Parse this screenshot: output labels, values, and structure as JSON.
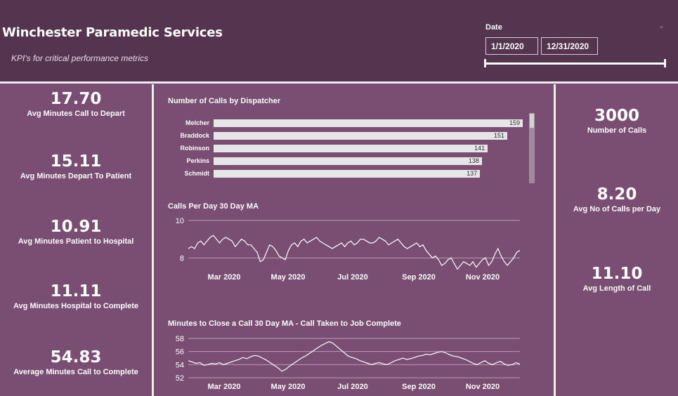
{
  "header": {
    "title": "Winchester Paramedic Services",
    "subtitle": "KPI's for critical performance metrics",
    "date_label": "Date",
    "date_start": "1/1/2020",
    "date_end": "12/31/2020",
    "slider_start": 0,
    "slider_end": 1
  },
  "left_kpis": [
    {
      "value": "17.70",
      "label": "Avg Minutes Call to Depart"
    },
    {
      "value": "15.11",
      "label": "Avg Minutes Depart To Patient"
    },
    {
      "value": "10.91",
      "label": "Avg Minutes Patient to Hospital"
    },
    {
      "value": "11.11",
      "label": "Avg Minutes Hospital to Complete"
    },
    {
      "value": "54.83",
      "label": "Average Minutes Call to Complete"
    }
  ],
  "right_kpis": [
    {
      "value": "3000",
      "label": "Number of Calls"
    },
    {
      "value": "8.20",
      "label": "Avg No of Calls per Day"
    },
    {
      "value": "11.10",
      "label": "Avg Length of Call"
    }
  ],
  "colors": {
    "background": "#7a4d72",
    "header": "#55344f",
    "bar": "#e6e6e8",
    "line": "#ffffff",
    "grid": "#b99ab2"
  },
  "chart_data": [
    {
      "type": "bar",
      "title": "Number of Calls by Dispatcher",
      "categories": [
        "Melcher",
        "Braddock",
        "Robinson",
        "Perkins",
        "Schmidt"
      ],
      "values": [
        159,
        151,
        141,
        138,
        137
      ],
      "xlim": [
        0,
        159
      ],
      "scrollable": true
    },
    {
      "type": "line",
      "title": "Calls Per Day 30 Day MA",
      "x_tick_labels": [
        "Mar 2020",
        "May 2020",
        "Jul 2020",
        "Sep 2020",
        "Nov 2020"
      ],
      "y_ticks": [
        8,
        10
      ],
      "ylim": [
        7.3,
        10
      ],
      "x_range": [
        "2020-01-30",
        "2020-12-31"
      ],
      "values": [
        8.5,
        8.6,
        8.5,
        8.8,
        8.9,
        8.7,
        8.9,
        9.1,
        9.2,
        9.0,
        8.8,
        9.0,
        9.1,
        9.0,
        8.9,
        8.6,
        8.8,
        9.0,
        8.9,
        8.7,
        8.7,
        8.5,
        8.3,
        7.8,
        7.9,
        8.3,
        8.7,
        8.6,
        8.4,
        8.1,
        8.0,
        7.9,
        8.4,
        8.7,
        8.8,
        8.6,
        8.9,
        9.0,
        8.8,
        8.9,
        9.0,
        9.1,
        8.9,
        8.8,
        8.7,
        8.6,
        8.5,
        8.6,
        8.7,
        8.8,
        8.6,
        8.8,
        8.9,
        8.7,
        8.8,
        9.0,
        9.0,
        8.9,
        8.8,
        8.8,
        8.9,
        9.1,
        9.0,
        8.9,
        8.7,
        8.8,
        8.9,
        9.0,
        8.8,
        8.6,
        8.5,
        8.6,
        8.7,
        8.8,
        8.6,
        8.7,
        8.4,
        8.2,
        8.0,
        8.1,
        7.9,
        7.6,
        7.7,
        7.9,
        8.0,
        7.7,
        7.4,
        7.6,
        7.8,
        7.7,
        7.6,
        7.8,
        7.5,
        7.7,
        7.9,
        8.0,
        7.6,
        7.8,
        8.2,
        8.5,
        8.1,
        7.8,
        7.6,
        7.8,
        8.0,
        8.3,
        8.4
      ]
    },
    {
      "type": "line",
      "title": "Minutes to Close a Call 30 Day MA - Call Taken to Job Complete",
      "x_tick_labels": [
        "Mar 2020",
        "May 2020",
        "Jul 2020",
        "Sep 2020",
        "Nov 2020"
      ],
      "y_ticks": [
        52,
        54,
        56,
        58
      ],
      "ylim": [
        52,
        58
      ],
      "x_range": [
        "2020-01-30",
        "2020-12-31"
      ],
      "values": [
        54.6,
        54.4,
        54.2,
        54.3,
        53.9,
        54.0,
        54.2,
        54.1,
        54.3,
        54.0,
        54.2,
        54.4,
        54.6,
        54.8,
        55.1,
        54.9,
        55.2,
        55.4,
        55.3,
        55.0,
        54.7,
        54.3,
        53.9,
        53.5,
        53.0,
        53.3,
        53.8,
        54.2,
        54.6,
        55.0,
        55.3,
        55.7,
        56.1,
        56.5,
        56.9,
        57.2,
        57.5,
        57.3,
        56.8,
        56.3,
        55.8,
        55.3,
        55.1,
        54.9,
        54.6,
        54.4,
        54.2,
        54.0,
        54.2,
        54.3,
        54.1,
        54.0,
        54.3,
        54.6,
        54.8,
        55.0,
        54.8,
        54.9,
        55.1,
        55.3,
        55.4,
        55.6,
        55.5,
        55.7,
        55.9,
        56.0,
        55.8,
        55.5,
        55.3,
        55.2,
        55.0,
        54.8,
        54.5,
        54.2,
        54.0,
        54.3,
        54.6,
        54.2,
        54.0,
        54.3,
        54.5,
        54.1,
        53.9,
        54.0,
        54.3,
        54.1
      ]
    }
  ]
}
